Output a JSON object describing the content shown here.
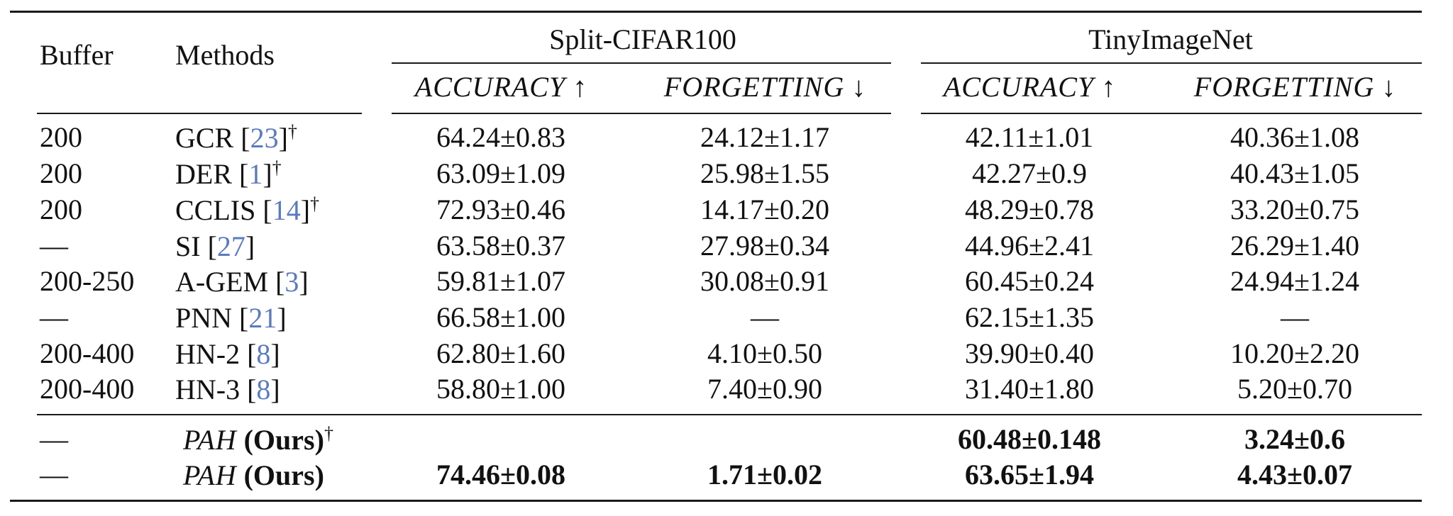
{
  "header": {
    "buffer": "Buffer",
    "methods": "Methods",
    "dataset1": "Split-CIFAR100",
    "dataset2": "TinyImageNet",
    "acc": "ACCURACY",
    "acc_arrow": "↑",
    "forg": "FORGETTING",
    "forg_arrow": "↓"
  },
  "rows": [
    {
      "buffer": "200",
      "method": "GCR",
      "ref": "23",
      "dagger": "†",
      "c_acc": "64.24±0.83",
      "c_forg": "24.12±1.17",
      "t_acc": "42.11±1.01",
      "t_forg": "40.36±1.08"
    },
    {
      "buffer": "200",
      "method": "DER",
      "ref": "1",
      "dagger": "†",
      "c_acc": "63.09±1.09",
      "c_forg": "25.98±1.55",
      "t_acc": "42.27±0.9",
      "t_forg": "40.43±1.05"
    },
    {
      "buffer": "200",
      "method": "CCLIS",
      "ref": "14",
      "dagger": "†",
      "c_acc": "72.93±0.46",
      "c_forg": "14.17±0.20",
      "t_acc": "48.29±0.78",
      "t_forg": "33.20±0.75"
    },
    {
      "buffer": "—",
      "method": "SI",
      "ref": "27",
      "dagger": "",
      "c_acc": "63.58±0.37",
      "c_forg": "27.98±0.34",
      "t_acc": "44.96±2.41",
      "t_forg": "26.29±1.40"
    },
    {
      "buffer": "200-250",
      "method": "A-GEM",
      "ref": "3",
      "dagger": "",
      "c_acc": "59.81±1.07",
      "c_forg": "30.08±0.91",
      "t_acc": "60.45±0.24",
      "t_forg": "24.94±1.24"
    },
    {
      "buffer": "—",
      "method": "PNN",
      "ref": "21",
      "dagger": "",
      "c_acc": "66.58±1.00",
      "c_forg": "—",
      "t_acc": "62.15±1.35",
      "t_forg": "—"
    },
    {
      "buffer": "200-400",
      "method": "HN-2",
      "ref": "8",
      "dagger": "",
      "c_acc": "62.80±1.60",
      "c_forg": "4.10±0.50",
      "t_acc": "39.90±0.40",
      "t_forg": "10.20±2.20"
    },
    {
      "buffer": "200-400",
      "method": "HN-3",
      "ref": "8",
      "dagger": "",
      "c_acc": "58.80±1.00",
      "c_forg": "7.40±0.90",
      "t_acc": "31.40±1.80",
      "t_forg": "5.20±0.70"
    }
  ],
  "ours": [
    {
      "buffer": "—",
      "method": "PAH",
      "suffix": "(Ours)",
      "dagger": "†",
      "c_acc": "",
      "c_forg": "",
      "t_acc": "60.48±0.148",
      "t_forg": "3.24±0.6"
    },
    {
      "buffer": "—",
      "method": "PAH",
      "suffix": "(Ours)",
      "dagger": "",
      "c_acc": "74.46±0.08",
      "c_forg": "1.71±0.02",
      "t_acc": "63.65±1.94",
      "t_forg": "4.43±0.07"
    }
  ],
  "colors": {
    "text": "#111111",
    "ref": "#5a7bbf",
    "rule": "#1a1a1a"
  }
}
